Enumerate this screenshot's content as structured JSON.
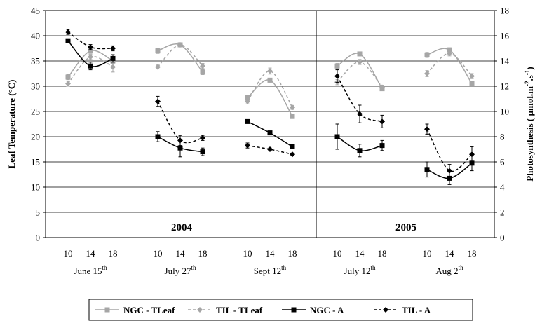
{
  "chart_data": {
    "type": "line",
    "left_axis": {
      "label": "Leaf Temperature (°C)",
      "min": 0,
      "max": 45,
      "step": 5
    },
    "right_axis": {
      "label_main": "Photosynthesis ( ",
      "label_unit": "µmol.m",
      "label_exp1": "-2",
      "label_mid": ".s",
      "label_exp2": "-1",
      "label_end": ")",
      "min": 0,
      "max": 18,
      "step": 2
    },
    "years": [
      "2004",
      "2005"
    ],
    "groups": [
      {
        "label": "June 15",
        "suffix": "th",
        "hours": [
          "10",
          "14",
          "18"
        ]
      },
      {
        "label": "July 27",
        "suffix": "th",
        "hours": [
          "10",
          "14",
          "18"
        ]
      },
      {
        "label": "Sept 12",
        "suffix": "th",
        "hours": [
          "10",
          "14",
          "18"
        ]
      },
      {
        "label": "July 12",
        "suffix": "th",
        "hours": [
          "10",
          "14",
          "18"
        ]
      },
      {
        "label": "Aug 2",
        "suffix": "th",
        "hours": [
          "10",
          "14",
          "18"
        ]
      }
    ],
    "series": [
      {
        "name": "NGC - TLeaf",
        "axis": "left",
        "color": "#a6a6a6",
        "dash": "solid",
        "marker": "square",
        "values": [
          [
            31.8,
            37.0,
            35.0
          ],
          [
            37.0,
            38.2,
            32.8
          ],
          [
            27.7,
            31.2,
            24.0
          ],
          [
            34.0,
            36.4,
            29.5
          ],
          [
            36.2,
            37.2,
            30.5
          ]
        ],
        "errors": [
          [
            0.5,
            0.5,
            0.5
          ],
          [
            0.5,
            0.4,
            0.5
          ],
          [
            0.5,
            0.4,
            0.3
          ],
          [
            0.5,
            0.4,
            0.3
          ],
          [
            0.5,
            0.4,
            0.3
          ]
        ]
      },
      {
        "name": "TIL - TLeaf",
        "axis": "left",
        "color": "#a6a6a6",
        "dash": "dashed",
        "marker": "diamond",
        "values": [
          [
            30.5,
            35.8,
            33.8
          ],
          [
            33.8,
            38.2,
            34.0
          ],
          [
            27.0,
            33.0,
            25.8
          ],
          [
            30.8,
            34.8,
            29.8
          ],
          [
            32.5,
            36.5,
            32.0
          ]
        ],
        "errors": [
          [
            0.5,
            0.5,
            1.0
          ],
          [
            0.4,
            0.4,
            0.5
          ],
          [
            0.5,
            0.6,
            0.4
          ],
          [
            0.5,
            0.5,
            0.4
          ],
          [
            0.6,
            0.5,
            0.5
          ]
        ]
      },
      {
        "name": "NGC - A",
        "axis": "right",
        "color": "#000000",
        "dash": "solid",
        "marker": "square",
        "values": [
          [
            15.6,
            13.6,
            14.2
          ],
          [
            8.0,
            7.1,
            6.8
          ],
          [
            9.2,
            8.3,
            7.2
          ],
          [
            8.0,
            6.9,
            7.3
          ],
          [
            5.4,
            4.7,
            5.9
          ]
        ],
        "errors": [
          [
            0.1,
            0.3,
            0.3
          ],
          [
            0.4,
            0.7,
            0.3
          ],
          [
            0.1,
            0.1,
            0.1
          ],
          [
            1.0,
            0.5,
            0.4
          ],
          [
            0.6,
            0.5,
            0.6
          ]
        ]
      },
      {
        "name": "TIL - A",
        "axis": "right",
        "color": "#000000",
        "dash": "dashed",
        "marker": "diamond",
        "values": [
          [
            16.3,
            15.1,
            15.0
          ],
          [
            10.8,
            7.7,
            7.9
          ],
          [
            7.3,
            7.0,
            6.6
          ],
          [
            12.8,
            9.8,
            9.2
          ],
          [
            8.6,
            5.3,
            6.6
          ]
        ],
        "errors": [
          [
            0.2,
            0.2,
            0.2
          ],
          [
            0.4,
            0.4,
            0.2
          ],
          [
            0.2,
            0.1,
            0.1
          ],
          [
            0.5,
            0.7,
            0.5
          ],
          [
            0.4,
            0.5,
            0.6
          ]
        ]
      }
    ],
    "legend": [
      "NGC - TLeaf",
      "TIL - TLeaf",
      "NGC - A",
      "TIL - A"
    ],
    "legend_position": "bottom",
    "grid": "horizontal"
  }
}
